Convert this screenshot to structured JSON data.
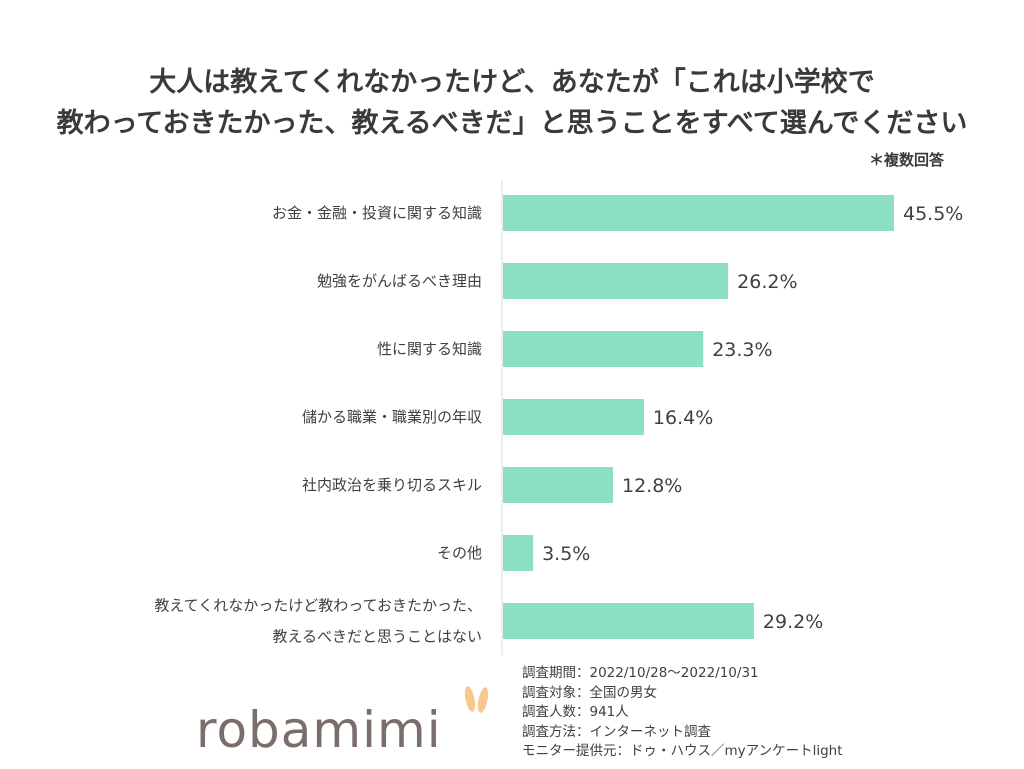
{
  "title_lines": [
    "大人は教えてくれなかったけど、あなたが「これは小学校で",
    "教わっておきたかった、教えるべきだ」と思うことをすべて選んでください"
  ],
  "note": "＊複数回答",
  "chart_data": {
    "type": "bar",
    "orientation": "horizontal",
    "categories": [
      [
        "お金・金融・投資に関する知識"
      ],
      [
        "勉強をがんばるべき理由"
      ],
      [
        "性に関する知識"
      ],
      [
        "儲かる職業・職業別の年収"
      ],
      [
        "社内政治を乗り切るスキル"
      ],
      [
        "その他"
      ],
      [
        "教えてくれなかったけど教わっておきたかった、",
        "教えるべきだと思うことはない"
      ]
    ],
    "values": [
      45.5,
      26.2,
      23.3,
      16.4,
      12.8,
      3.5,
      29.2
    ],
    "value_labels": [
      "45.5%",
      "26.2%",
      "23.3%",
      "16.4%",
      "12.8%",
      "3.5%",
      "29.2%"
    ],
    "unit": "%",
    "bar_color": "#8ddfc4",
    "grid": false,
    "legend": "none"
  },
  "footer_lines": [
    "調査期間：2022/10/28～2022/10/31",
    "調査対象：全国の男女",
    "調査人数：941人",
    "調査方法：インターネット調査",
    "モニター提供元：ドゥ・ハウス／myアンケートlight"
  ],
  "logo": {
    "text": "robamimi",
    "ear_color": "#f5c990"
  }
}
